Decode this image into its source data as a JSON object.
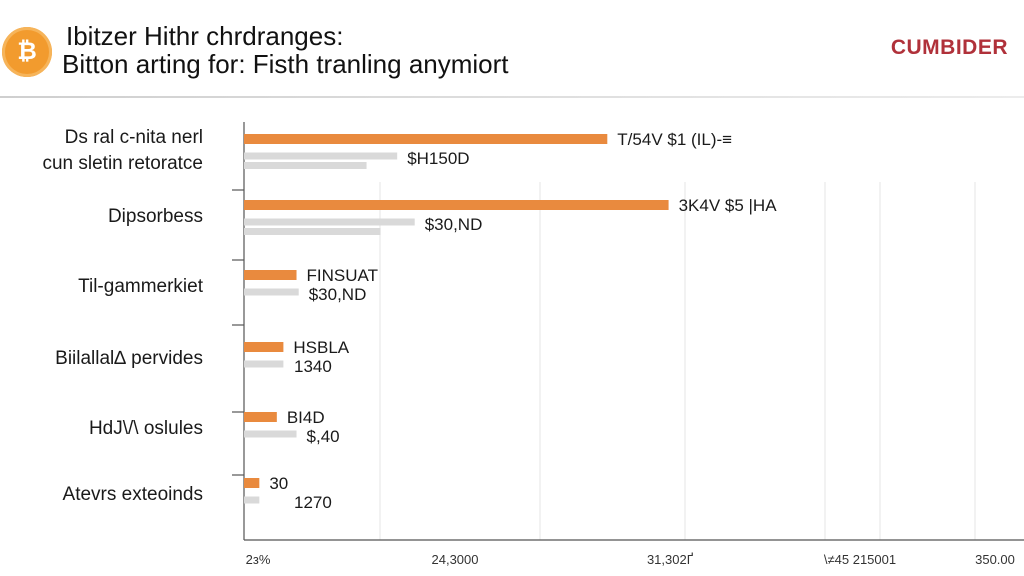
{
  "header": {
    "logo_glyph": "₿",
    "logo_icon": "bitcoin-icon",
    "title": "Ibitzer Hithr chrdranges:",
    "subtitle": "Bitton arting for: Fisth tranling anymiort",
    "brand": "CUMBIDER"
  },
  "colors": {
    "series_primary": "#e98a3e",
    "series_secondary": "#d9d9d9",
    "axis": "#555555",
    "grid": "#e4e4e4",
    "brand": "#b0313a"
  },
  "chart_data": {
    "type": "bar",
    "orientation": "horizontal",
    "title": "",
    "xlabel": "",
    "ylabel": "",
    "grid": true,
    "xlim": [
      0,
      35000
    ],
    "x_ticks": [
      "2з%",
      "24,3000",
      "31,302Ґ",
      "\\≠45 215001",
      "350.00"
    ],
    "categories": [
      [
        "Ds ral c-nita nerl",
        "cun sletin retoratce"
      ],
      [
        "Dipsorbess"
      ],
      [
        "Til-gammerkiet"
      ],
      [
        "Biilallal∆ pervides"
      ],
      [
        "HdJ\\/\\ oslules"
      ],
      [
        "Atevrs exteoinds"
      ]
    ],
    "series": [
      {
        "values": [
          16600,
          19400,
          2400,
          1800,
          1500,
          700
        ],
        "labels": [
          "T/54V $1 (IL)-≡",
          "3K4V $5 |HA",
          "FINSUAT",
          "HSBLA",
          "BI4D",
          "30"
        ]
      },
      {
        "values": [
          7000,
          7800,
          2500,
          1800,
          2400,
          700
        ],
        "labels": [
          "$H150D",
          "$30,ND",
          "$30,ND",
          "1340",
          "$,40",
          "1270"
        ]
      }
    ]
  }
}
